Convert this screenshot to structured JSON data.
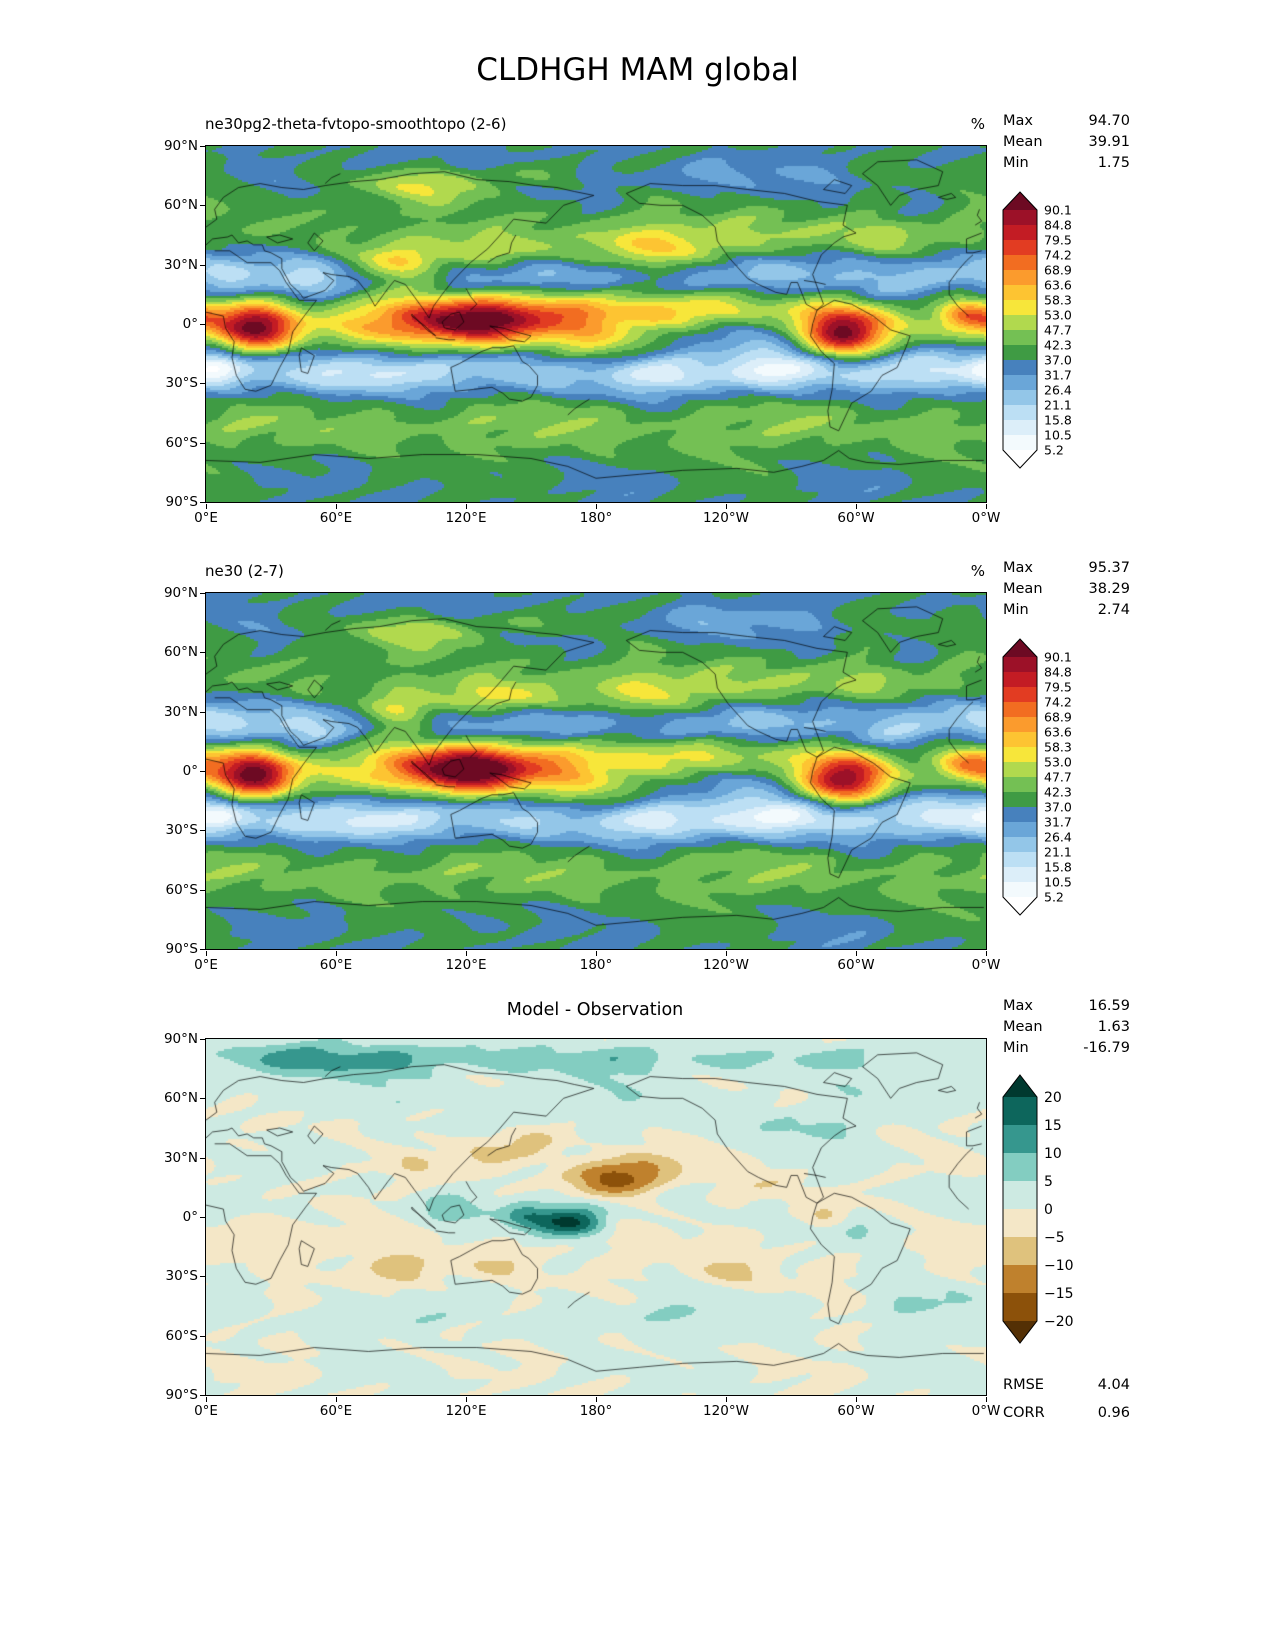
{
  "ui": {
    "max_label": "Max",
    "mean_label": "Mean",
    "min_label": "Min",
    "rmse_label": "RMSE",
    "corr_label": "CORR"
  },
  "chart_data": {
    "type": "heatmap",
    "title": "CLDHGH MAM global",
    "projection": "equirectangular global, longitude 0°E to 0°W (360°)",
    "x_ticks": [
      "0°E",
      "60°E",
      "120°E",
      "180°",
      "120°W",
      "60°W",
      "0°W"
    ],
    "y_ticks": [
      "90°N",
      "60°N",
      "30°N",
      "0°",
      "30°S",
      "60°S",
      "90°S"
    ],
    "panels": [
      {
        "id": "model-1",
        "title": "ne30pg2-theta-fvtopo-smoothtopo (2-6)",
        "units": "%",
        "stats": {
          "max": "94.70",
          "mean": "39.91",
          "min": "1.75"
        },
        "colorbar": {
          "levels": [
            5.2,
            10.5,
            15.8,
            21.1,
            26.4,
            31.7,
            37.0,
            42.3,
            47.7,
            53.0,
            58.3,
            63.6,
            68.9,
            74.2,
            79.5,
            84.8,
            90.1
          ],
          "tick_labels_top_to_bottom": [
            "90.1",
            "84.8",
            "79.5",
            "74.2",
            "68.9",
            "63.6",
            "58.3",
            "53.0",
            "47.7",
            "42.3",
            "37.0",
            "31.7",
            "26.4",
            "21.1",
            "15.8",
            "10.5",
            "5.2"
          ],
          "colors_low_to_high": [
            "#ffffff",
            "#f3fafd",
            "#dceef9",
            "#bcdff4",
            "#93c6e8",
            "#6aa6d8",
            "#4781bd",
            "#3f9b44",
            "#74c054",
            "#b1d94e",
            "#f7e63a",
            "#fdc432",
            "#fb9b2d",
            "#f26d21",
            "#e23c22",
            "#c31c24",
            "#9c1128",
            "#6d0a23"
          ]
        },
        "field": {
          "base": 37,
          "noise": 3.5,
          "phase": 0,
          "features": [
            [
              0,
              0,
              9999,
              11,
              10
            ],
            [
              0,
              -24,
              9999,
              8,
              -17
            ],
            [
              0,
              26,
              9999,
              8,
              -13
            ],
            [
              0,
              -52,
              9999,
              11,
              8
            ],
            [
              0,
              47,
              9999,
              12,
              5
            ],
            [
              22,
              -2,
              13,
              8,
              46
            ],
            [
              352,
              4,
              10,
              6,
              28
            ],
            [
              97,
              2,
              20,
              9,
              30
            ],
            [
              127,
              1,
              16,
              8,
              36
            ],
            [
              155,
              5,
              18,
              8,
              18
            ],
            [
              192,
              6,
              32,
              7,
              12
            ],
            [
              235,
              8,
              25,
              6,
              10
            ],
            [
              295,
              -4,
              13,
              9,
              46
            ],
            [
              175,
              -12,
              20,
              8,
              10
            ],
            [
              88,
              30,
              14,
              7,
              28
            ],
            [
              132,
              36,
              18,
              7,
              20
            ],
            [
              212,
              37,
              28,
              8,
              20
            ],
            [
              320,
              45,
              20,
              8,
              10
            ],
            [
              258,
              45,
              18,
              7,
              6
            ],
            [
              100,
              70,
              25,
              6,
              12
            ],
            [
              150,
              78,
              30,
              5,
              8
            ],
            [
              5,
              -22,
              9,
              6,
              -16
            ],
            [
              267,
              -21,
              14,
              7,
              -15
            ],
            [
              335,
              -20,
              10,
              6,
              -10
            ],
            [
              48,
              20,
              10,
              6,
              -10
            ],
            [
              10,
              22,
              12,
              6,
              -6
            ],
            [
              245,
              -5,
              22,
              6,
              -14
            ],
            [
              75,
              -25,
              15,
              6,
              -8
            ],
            [
              215,
              -27,
              18,
              7,
              -8
            ],
            [
              315,
              18,
              12,
              6,
              -8
            ],
            [
              230,
              75,
              35,
              6,
              -8
            ],
            [
              325,
              55,
              12,
              6,
              -8
            ],
            [
              120,
              82,
              30,
              5,
              -7
            ]
          ]
        }
      },
      {
        "id": "model-2",
        "title": "ne30 (2-7)",
        "units": "%",
        "stats": {
          "max": "95.37",
          "mean": "38.29",
          "min": "2.74"
        },
        "colorbar": {
          "levels": [
            5.2,
            10.5,
            15.8,
            21.1,
            26.4,
            31.7,
            37.0,
            42.3,
            47.7,
            53.0,
            58.3,
            63.6,
            68.9,
            74.2,
            79.5,
            84.8,
            90.1
          ],
          "tick_labels_top_to_bottom": [
            "90.1",
            "84.8",
            "79.5",
            "74.2",
            "68.9",
            "63.6",
            "58.3",
            "53.0",
            "47.7",
            "42.3",
            "37.0",
            "31.7",
            "26.4",
            "21.1",
            "15.8",
            "10.5",
            "5.2"
          ],
          "colors_low_to_high": [
            "#ffffff",
            "#f3fafd",
            "#dceef9",
            "#bcdff4",
            "#93c6e8",
            "#6aa6d8",
            "#4781bd",
            "#3f9b44",
            "#74c054",
            "#b1d94e",
            "#f7e63a",
            "#fdc432",
            "#fb9b2d",
            "#f26d21",
            "#e23c22",
            "#c31c24",
            "#9c1128",
            "#6d0a23"
          ]
        },
        "field": {
          "base": 36.6,
          "noise": 3.5,
          "phase": 0.8,
          "features": [
            [
              0,
              0,
              9999,
              11,
              9
            ],
            [
              0,
              -24,
              9999,
              8,
              -17
            ],
            [
              0,
              26,
              9999,
              8,
              -13
            ],
            [
              0,
              -52,
              9999,
              11,
              8
            ],
            [
              0,
              47,
              9999,
              12,
              5
            ],
            [
              22,
              -2,
              13,
              8,
              47
            ],
            [
              352,
              4,
              10,
              6,
              26
            ],
            [
              97,
              2,
              20,
              9,
              28
            ],
            [
              124,
              0,
              16,
              8,
              40
            ],
            [
              152,
              4,
              18,
              8,
              16
            ],
            [
              192,
              6,
              30,
              7,
              9
            ],
            [
              235,
              8,
              25,
              6,
              8
            ],
            [
              295,
              -4,
              13,
              9,
              47
            ],
            [
              175,
              -12,
              20,
              8,
              9
            ],
            [
              88,
              30,
              13,
              7,
              25
            ],
            [
              132,
              36,
              18,
              7,
              22
            ],
            [
              212,
              37,
              28,
              8,
              17
            ],
            [
              320,
              45,
              20,
              8,
              9
            ],
            [
              258,
              45,
              18,
              7,
              6
            ],
            [
              100,
              70,
              25,
              6,
              11
            ],
            [
              150,
              78,
              30,
              5,
              8
            ],
            [
              5,
              -22,
              9,
              6,
              -16
            ],
            [
              267,
              -21,
              14,
              7,
              -16
            ],
            [
              335,
              -20,
              10,
              6,
              -11
            ],
            [
              48,
              20,
              10,
              6,
              -11
            ],
            [
              10,
              22,
              12,
              6,
              -7
            ],
            [
              245,
              -5,
              22,
              6,
              -13
            ],
            [
              75,
              -25,
              15,
              6,
              -9
            ],
            [
              215,
              -27,
              18,
              7,
              -9
            ],
            [
              315,
              18,
              12,
              6,
              -9
            ],
            [
              230,
              75,
              35,
              6,
              -8
            ],
            [
              325,
              55,
              12,
              6,
              -8
            ],
            [
              120,
              82,
              30,
              5,
              -7
            ]
          ]
        }
      },
      {
        "id": "difference",
        "title": "Model - Observation",
        "units": "",
        "stats": {
          "max": "16.59",
          "mean": "1.63",
          "min": "-16.79",
          "rmse": "4.04",
          "corr": "0.96"
        },
        "colorbar": {
          "levels": [
            -20,
            -15,
            -10,
            -5,
            0,
            5,
            10,
            15,
            20
          ],
          "tick_labels_top_to_bottom": [
            "20",
            "15",
            "10",
            "5",
            "0",
            "−5",
            "−10",
            "−15",
            "−20"
          ],
          "colors_low_to_high": [
            "#543005",
            "#8c510a",
            "#bf812d",
            "#dfc27d",
            "#f4e7c7",
            "#cdeae2",
            "#83cdc1",
            "#36978e",
            "#0d665c",
            "#00392f"
          ]
        },
        "field": {
          "base": 0.6,
          "noise": 2.2,
          "phase": 1.7,
          "features": [
            [
              172,
              -1,
              10,
              6,
              17
            ],
            [
              158,
              -4,
              12,
              5,
              9
            ],
            [
              146,
              2,
              8,
              5,
              8
            ],
            [
              110,
              3,
              12,
              6,
              6
            ],
            [
              186,
              19,
              13,
              6,
              -18
            ],
            [
              205,
              26,
              15,
              6,
              -8
            ],
            [
              150,
              37,
              9,
              5,
              -12
            ],
            [
              128,
              30,
              10,
              5,
              -6
            ],
            [
              95,
              25,
              10,
              5,
              -5
            ],
            [
              60,
              80,
              45,
              6,
              11
            ],
            [
              180,
              80,
              40,
              5,
              6
            ],
            [
              265,
              80,
              30,
              5,
              5
            ],
            [
              300,
              -6,
              9,
              5,
              8
            ],
            [
              312,
              -18,
              10,
              6,
              5
            ],
            [
              288,
              3,
              8,
              5,
              -6
            ],
            [
              262,
              15,
              12,
              5,
              -5
            ],
            [
              240,
              -28,
              16,
              6,
              -6
            ],
            [
              90,
              -27,
              14,
              6,
              -7
            ],
            [
              130,
              -25,
              12,
              5,
              -5
            ],
            [
              20,
              -8,
              12,
              6,
              -5
            ],
            [
              345,
              10,
              10,
              5,
              5
            ],
            [
              330,
              -45,
              25,
              6,
              4
            ],
            [
              200,
              -50,
              30,
              6,
              4
            ],
            [
              75,
              -50,
              25,
              6,
              4
            ],
            [
              270,
              45,
              20,
              6,
              4
            ],
            [
              30,
              48,
              15,
              5,
              -4
            ],
            [
              0,
              -15,
              9999,
              8,
              -2
            ],
            [
              0,
              62,
              9999,
              12,
              1.5
            ]
          ]
        }
      }
    ]
  }
}
